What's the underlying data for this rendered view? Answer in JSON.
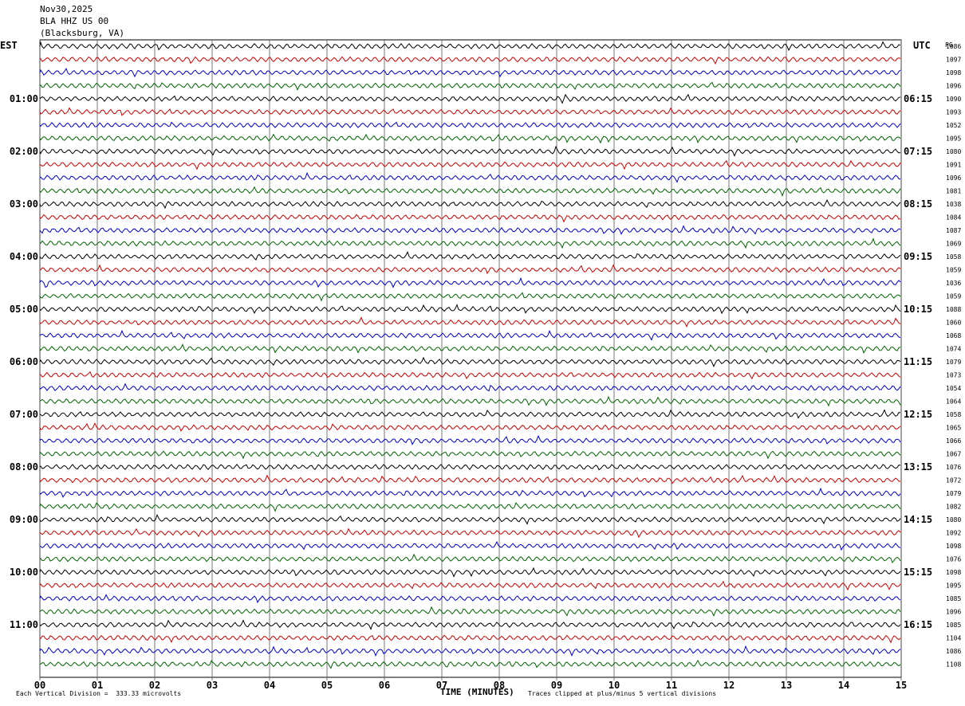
{
  "header": {
    "date": "Nov30,2025",
    "station": "BLA HHZ US 00",
    "location": "(Blacksburg, VA)"
  },
  "left_tz": "EST",
  "right_tz": "UTC",
  "right_header": "PG",
  "footer": {
    "scale_note": "Each Vertical Division =  333.33 microvolts",
    "clip_note": "Traces clipped at plus/minus 5 vertical divisions"
  },
  "colors": {
    "trace_cycle": [
      "#000000",
      "#cc0000",
      "#0000cc",
      "#006400"
    ],
    "grid": "#000000"
  },
  "chart_data": {
    "type": "line",
    "title": "",
    "xlabel": "TIME (MINUTES)",
    "x_ticks": [
      "00",
      "01",
      "02",
      "03",
      "04",
      "05",
      "06",
      "07",
      "08",
      "09",
      "10",
      "11",
      "12",
      "13",
      "14",
      "15"
    ],
    "xlim": [
      0,
      15
    ],
    "left_hour_labels": [
      "01:00",
      "02:00",
      "03:00",
      "04:00",
      "05:00",
      "06:00",
      "07:00",
      "08:00",
      "09:00",
      "10:00",
      "11:00"
    ],
    "right_hour_labels": [
      "06:15",
      "07:15",
      "08:15",
      "09:15",
      "10:15",
      "11:15",
      "12:15",
      "13:15",
      "14:15",
      "15:15",
      "16:15"
    ],
    "trace_values": [
      "1086",
      "1097",
      "1098",
      "1096",
      "1090",
      "1093",
      "1052",
      "1095",
      "1080",
      "1091",
      "1096",
      "1081",
      "1038",
      "1084",
      "1087",
      "1069",
      "1058",
      "1059",
      "1036",
      "1059",
      "1088",
      "1060",
      "1068",
      "1074",
      "1079",
      "1073",
      "1054",
      "1064",
      "1058",
      "1065",
      "1066",
      "1067",
      "1076",
      "1072",
      "1079",
      "1082",
      "1080",
      "1092",
      "1098",
      "1076",
      "1098",
      "1095",
      "1085",
      "1096",
      "1085",
      "1104",
      "1086",
      "1108"
    ],
    "trace_count": 48
  }
}
